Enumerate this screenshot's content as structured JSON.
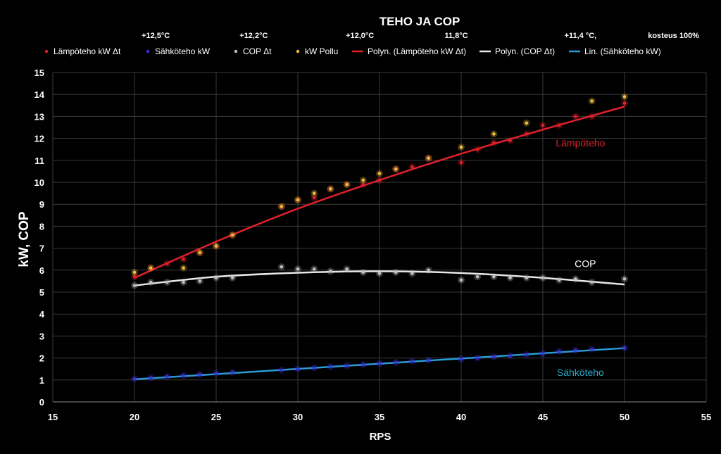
{
  "chart_data": {
    "type": "scatter",
    "title": "TEHO JA COP",
    "xlabel": "RPS",
    "ylabel": "kW, COP",
    "xlim": [
      15,
      55
    ],
    "ylim": [
      0,
      15
    ],
    "xticks": [
      15,
      20,
      25,
      30,
      35,
      40,
      45,
      50,
      55
    ],
    "yticks": [
      0,
      1,
      2,
      3,
      4,
      5,
      6,
      7,
      8,
      9,
      10,
      11,
      12,
      13,
      14,
      15
    ],
    "grid": true,
    "legend_position": "top",
    "temperature_labels": [
      {
        "x": 21.3,
        "text": "+12,5°C"
      },
      {
        "x": 27.3,
        "text": "+12,2°C"
      },
      {
        "x": 33.8,
        "text": "+12,0°C"
      },
      {
        "x": 39.7,
        "text": "11,8°C"
      },
      {
        "x": 47.3,
        "text": "+11,4 °C,"
      },
      {
        "x": 53.0,
        "text": "kosteus 100%"
      }
    ],
    "series": [
      {
        "name": "Lämpöteho kW Δt",
        "kind": "points",
        "color": "#e0202a",
        "x": [
          20,
          21,
          22,
          23,
          24,
          25,
          26,
          29,
          30,
          31,
          32,
          33,
          34,
          35,
          36,
          37,
          38,
          40,
          41,
          42,
          43,
          44,
          45,
          46,
          47,
          48,
          50
        ],
        "y": [
          5.7,
          6.1,
          6.3,
          6.5,
          6.8,
          7.1,
          7.6,
          8.9,
          9.2,
          9.3,
          9.7,
          9.9,
          9.9,
          10.1,
          10.6,
          10.7,
          11.1,
          10.9,
          11.5,
          11.8,
          11.9,
          12.2,
          12.6,
          12.6,
          13.0,
          13.0,
          13.6
        ]
      },
      {
        "name": "Sähköteho kW",
        "kind": "points",
        "color": "#3a36d8",
        "x": [
          20,
          21,
          22,
          23,
          24,
          25,
          26,
          29,
          30,
          31,
          32,
          33,
          34,
          35,
          36,
          37,
          38,
          40,
          41,
          42,
          43,
          44,
          45,
          46,
          47,
          48,
          50
        ],
        "y": [
          1.05,
          1.1,
          1.15,
          1.2,
          1.25,
          1.3,
          1.35,
          1.45,
          1.5,
          1.55,
          1.6,
          1.65,
          1.7,
          1.75,
          1.8,
          1.85,
          1.9,
          1.95,
          2.0,
          2.05,
          2.1,
          2.15,
          2.2,
          2.3,
          2.35,
          2.4,
          2.45
        ]
      },
      {
        "name": "COP Δt",
        "kind": "points",
        "color": "#bfbfbf",
        "x": [
          20,
          21,
          22,
          23,
          24,
          25,
          26,
          29,
          30,
          31,
          32,
          33,
          34,
          35,
          36,
          37,
          38,
          40,
          41,
          42,
          43,
          44,
          45,
          46,
          47,
          48,
          50
        ],
        "y": [
          5.3,
          5.45,
          5.45,
          5.45,
          5.5,
          5.65,
          5.65,
          6.15,
          6.05,
          6.05,
          5.95,
          6.05,
          5.9,
          5.85,
          5.9,
          5.85,
          6.0,
          5.55,
          5.7,
          5.7,
          5.65,
          5.65,
          5.65,
          5.55,
          5.6,
          5.45,
          5.6
        ]
      },
      {
        "name": "kW Pollu",
        "kind": "points",
        "color": "#f0c040",
        "x": [
          20,
          21,
          23,
          24,
          25,
          26,
          29,
          30,
          31,
          32,
          33,
          34,
          35,
          36,
          38,
          40,
          42,
          44,
          48,
          50
        ],
        "y": [
          5.9,
          6.1,
          6.1,
          6.8,
          7.1,
          7.6,
          8.9,
          9.2,
          9.5,
          9.7,
          9.9,
          10.1,
          10.4,
          10.6,
          11.1,
          11.6,
          12.2,
          12.7,
          13.7,
          13.9
        ]
      },
      {
        "name": "Polyn. (Lämpöteho kW Δt)",
        "kind": "curve",
        "color": "#e0202a",
        "x": [
          20,
          25,
          30,
          35,
          40,
          45,
          50
        ],
        "y": [
          5.65,
          7.3,
          8.8,
          10.1,
          11.3,
          12.4,
          13.45
        ]
      },
      {
        "name": "Polyn. (COP Δt)",
        "kind": "curve",
        "color": "#e8e8e8",
        "x": [
          20,
          25,
          30,
          35,
          40,
          45,
          50
        ],
        "y": [
          5.3,
          5.7,
          5.88,
          5.95,
          5.87,
          5.65,
          5.35
        ]
      },
      {
        "name": "Lin. (Sähköteho kW)",
        "kind": "curve",
        "color": "#2a9ad8",
        "x": [
          20,
          50
        ],
        "y": [
          1.03,
          2.45
        ]
      }
    ],
    "annotations": [
      {
        "text": "Lämpöteho",
        "x": 47.3,
        "y": 11.8,
        "color": "#e0202a"
      },
      {
        "text": "COP",
        "x": 47.6,
        "y": 6.3,
        "color": "#ffffff"
      },
      {
        "text": "Sähköteho",
        "x": 47.3,
        "y": 1.35,
        "color": "#2aa8c8"
      }
    ]
  }
}
